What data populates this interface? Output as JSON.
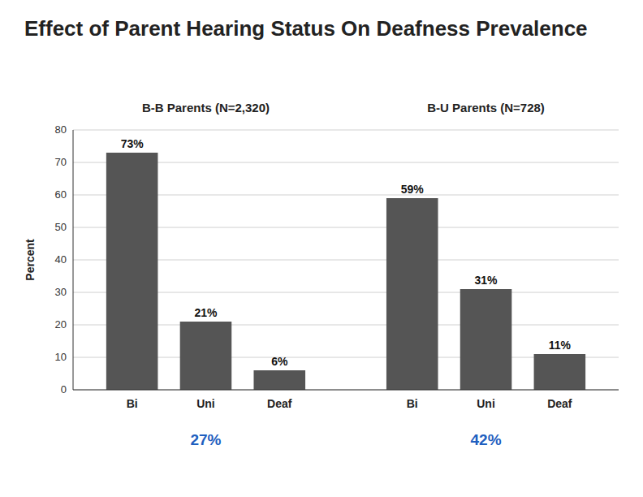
{
  "chart_data": {
    "type": "bar",
    "title": "Effect of Parent Hearing Status On Deafness Prevalence",
    "y_label": "Percent",
    "categories": [
      "Bi",
      "Uni",
      "Deaf",
      "Bi",
      "Uni",
      "Deaf"
    ],
    "values": [
      73,
      21,
      6,
      59,
      31,
      11
    ],
    "value_labels": [
      "73%",
      "21%",
      "6%",
      "59%",
      "31%",
      "11%"
    ],
    "data_labels": true,
    "group_labels": [
      "B-B Parents (N=2,320)",
      "B-U Parents (N=728)"
    ],
    "group_notes": [
      "27%",
      "42%"
    ],
    "color": "#555555",
    "ylim": [
      0,
      80
    ],
    "yticks": [
      0,
      10,
      20,
      30,
      40,
      50,
      60,
      70,
      80
    ],
    "grid": true
  }
}
